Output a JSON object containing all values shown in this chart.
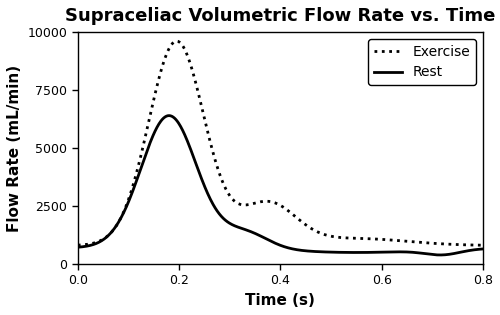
{
  "title": "Supraceliac Volumetric Flow Rate vs. Time",
  "xlabel": "Time (s)",
  "ylabel": "Flow Rate (mL/min)",
  "xlim": [
    0.0,
    0.8
  ],
  "ylim": [
    0,
    10000
  ],
  "xticks": [
    0.0,
    0.2,
    0.4,
    0.6,
    0.8
  ],
  "yticks": [
    0,
    2500,
    5000,
    7500,
    10000
  ],
  "background_color": "#ffffff",
  "line_color": "#000000",
  "rest_label": "Rest",
  "exercise_label": "Exercise",
  "rest_linestyle": "solid",
  "exercise_linestyle": "dotted",
  "linewidth": 2.0,
  "legend_loc": "upper right",
  "title_fontsize": 13,
  "label_fontsize": 11,
  "tick_fontsize": 9
}
